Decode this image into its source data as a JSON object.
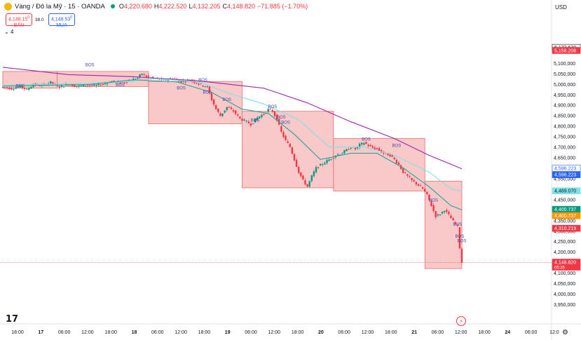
{
  "header": {
    "symbol": "Vàng / Đô la Mỹ · 15 · OANDA",
    "o_label": "O",
    "o": "4,220.680",
    "h_label": "H",
    "h": "4,222.520",
    "l_label": "L",
    "l": "4,132.205",
    "c_label": "C",
    "c": "4,148.820",
    "change": "−71.885 (−1.70%)"
  },
  "trade": {
    "sell_price": "4,148.15",
    "sell_sup": "0",
    "sell_label": "BÁN",
    "spread": "38.0",
    "buy_price": "4,148.53",
    "buy_sup": "0",
    "buy_label": "MUA"
  },
  "indicator_row": {
    "chevron": "⌄",
    "count": "4"
  },
  "currency": "USD",
  "colors": {
    "up": "#089981",
    "down": "#f23645",
    "box": "#f7b6b6",
    "box_border": "#e07070",
    "ema_teal": "#26a69a",
    "ema_cyan": "#7fe3e8",
    "ema_purple": "#9c27b0",
    "bos": "#3949ab"
  },
  "chart_data": {
    "type": "candlestick",
    "ylim": [
      3950,
      5220
    ],
    "y_ticks": [
      "5,100,000",
      "5,050,000",
      "5,000,000",
      "4,950,000",
      "4,900,000",
      "4,850,000",
      "4,800,000",
      "4,750,000",
      "4,700,000",
      "4,650,000",
      "4,600,000",
      "4,550,000",
      "4,500,000",
      "4,450,000",
      "4,400,000",
      "4,350,000",
      "4,300,000",
      "4,250,000",
      "4,200,000",
      "4,150,000",
      "4,100,000",
      "4,050,000",
      "4,000,000",
      "3,950,000"
    ],
    "x_ticks": [
      "18:00",
      "17",
      "06:00",
      "12:00",
      "18:00",
      "18",
      "06:00",
      "12:00",
      "18:00",
      "19",
      "06:00",
      "12:00",
      "18:00",
      "20",
      "06:00",
      "12:00",
      "18:00",
      "21",
      "06:00",
      "12:00",
      "18:00",
      "24",
      "06:00",
      "12:0"
    ],
    "price_path": [
      [
        0,
        4985
      ],
      [
        4,
        4978
      ],
      [
        8,
        4990
      ],
      [
        11,
        4972
      ],
      [
        14,
        4998
      ],
      [
        18,
        4992
      ],
      [
        22,
        5008
      ],
      [
        26,
        4985
      ],
      [
        30,
        5000
      ],
      [
        34,
        4988
      ],
      [
        38,
        4995
      ],
      [
        42,
        4992
      ],
      [
        46,
        5000
      ],
      [
        50,
        5012
      ],
      [
        54,
        5005
      ],
      [
        58,
        5015
      ],
      [
        62,
        5030
      ],
      [
        64,
        5050
      ],
      [
        66,
        5035
      ],
      [
        70,
        5025
      ],
      [
        74,
        5018
      ],
      [
        78,
        5028
      ],
      [
        82,
        5012
      ],
      [
        86,
        5020
      ],
      [
        90,
        5000
      ],
      [
        94,
        4985
      ],
      [
        96,
        4925
      ],
      [
        98,
        4880
      ],
      [
        100,
        4848
      ],
      [
        103,
        4890
      ],
      [
        106,
        4870
      ],
      [
        109,
        4835
      ],
      [
        112,
        4820
      ],
      [
        114,
        4808
      ],
      [
        117,
        4840
      ],
      [
        120,
        4858
      ],
      [
        122,
        4878
      ],
      [
        124,
        4870
      ],
      [
        126,
        4830
      ],
      [
        128,
        4770
      ],
      [
        130,
        4730
      ],
      [
        132,
        4700
      ],
      [
        134,
        4640
      ],
      [
        136,
        4580
      ],
      [
        138,
        4540
      ],
      [
        140,
        4510
      ],
      [
        142,
        4560
      ],
      [
        144,
        4600
      ],
      [
        147,
        4620
      ],
      [
        150,
        4640
      ],
      [
        153,
        4660
      ],
      [
        156,
        4672
      ],
      [
        158,
        4685
      ],
      [
        160,
        4700
      ],
      [
        162,
        4690
      ],
      [
        164,
        4710
      ],
      [
        166,
        4720
      ],
      [
        169,
        4700
      ],
      [
        172,
        4690
      ],
      [
        175,
        4670
      ],
      [
        178,
        4660
      ],
      [
        180,
        4640
      ],
      [
        182,
        4615
      ],
      [
        184,
        4580
      ],
      [
        186,
        4560
      ],
      [
        188,
        4540
      ],
      [
        190,
        4525
      ],
      [
        193,
        4500
      ],
      [
        195,
        4470
      ],
      [
        197,
        4420
      ],
      [
        199,
        4370
      ],
      [
        201,
        4380
      ],
      [
        203,
        4400
      ],
      [
        205,
        4375
      ],
      [
        207,
        4345
      ],
      [
        209,
        4320
      ],
      [
        210,
        4220
      ],
      [
        211,
        4150
      ]
    ],
    "ema_teal": [
      [
        0,
        4990
      ],
      [
        40,
        4998
      ],
      [
        60,
        5020
      ],
      [
        80,
        5010
      ],
      [
        96,
        4960
      ],
      [
        110,
        4880
      ],
      [
        122,
        4860
      ],
      [
        134,
        4760
      ],
      [
        146,
        4640
      ],
      [
        160,
        4670
      ],
      [
        172,
        4670
      ],
      [
        184,
        4600
      ],
      [
        196,
        4510
      ],
      [
        206,
        4420
      ],
      [
        211,
        4400
      ]
    ],
    "ema_cyan": [
      [
        0,
        4995
      ],
      [
        50,
        5005
      ],
      [
        70,
        5025
      ],
      [
        90,
        5010
      ],
      [
        104,
        4955
      ],
      [
        120,
        4905
      ],
      [
        136,
        4830
      ],
      [
        150,
        4700
      ],
      [
        166,
        4700
      ],
      [
        180,
        4660
      ],
      [
        196,
        4580
      ],
      [
        206,
        4500
      ],
      [
        211,
        4489
      ]
    ],
    "ema_purple": [
      [
        0,
        5080
      ],
      [
        30,
        5045
      ],
      [
        60,
        5035
      ],
      [
        90,
        5015
      ],
      [
        120,
        4980
      ],
      [
        140,
        4910
      ],
      [
        160,
        4820
      ],
      [
        180,
        4740
      ],
      [
        196,
        4660
      ],
      [
        211,
        4596
      ]
    ],
    "boxes": [
      {
        "i0": 0,
        "i1": 25,
        "top": 5060,
        "bottom": 4980
      },
      {
        "i0": 25,
        "i1": 67,
        "top": 5060,
        "bottom": 4988
      },
      {
        "i0": 67,
        "i1": 110,
        "top": 5012,
        "bottom": 4810
      },
      {
        "i0": 110,
        "i1": 152,
        "top": 4870,
        "bottom": 4505
      },
      {
        "i0": 152,
        "i1": 194,
        "top": 4740,
        "bottom": 4490
      },
      {
        "i0": 194,
        "i1": 211,
        "top": 4537,
        "bottom": 4120
      }
    ],
    "bos_labels": [
      {
        "i": 8,
        "v": 4985,
        "text": "BOS"
      },
      {
        "i": 40,
        "v": 5085,
        "text": "BOS"
      },
      {
        "i": 54,
        "v": 4990,
        "text": "BOS"
      },
      {
        "i": 82,
        "v": 4975,
        "text": "BOS"
      },
      {
        "i": 92,
        "v": 5012,
        "text": "BOS"
      },
      {
        "i": 94,
        "v": 4955,
        "text": "BOS"
      },
      {
        "i": 103,
        "v": 4920,
        "text": "BOS"
      },
      {
        "i": 116,
        "v": 4820,
        "text": "BOS"
      },
      {
        "i": 124,
        "v": 4885,
        "text": "BOS"
      },
      {
        "i": 128,
        "v": 4836,
        "text": "BOS"
      },
      {
        "i": 130,
        "v": 4810,
        "text": "BOS"
      },
      {
        "i": 167,
        "v": 4730,
        "text": "BOS"
      },
      {
        "i": 181,
        "v": 4700,
        "text": "BOS"
      },
      {
        "i": 198,
        "v": 4440,
        "text": "BOS"
      },
      {
        "i": 209,
        "v": 4325,
        "text": "BOS"
      },
      {
        "i": 210,
        "v": 4268,
        "text": "BOS"
      },
      {
        "i": 211,
        "v": 4245,
        "text": "BOS"
      }
    ],
    "price_labels": [
      {
        "v": 5172.63,
        "text": "5,172.630",
        "bg": "#ffffff",
        "fg": "#131722",
        "border": "#131722"
      },
      {
        "v": 5158.208,
        "text": "5,158.208",
        "bg": "#f23645",
        "fg": "#ffffff"
      },
      {
        "v": 4596.223,
        "text": "4,596.223",
        "bg": "#ffffff",
        "fg": "#2962ff",
        "border": "#2962ff"
      },
      {
        "v": 4596.223,
        "text": "4,596.223",
        "bg": "#2962ff",
        "fg": "#ffffff",
        "offset": 1
      },
      {
        "v": 4489.07,
        "text": "4,489.070",
        "bg": "#7fe3e8",
        "fg": "#131722"
      },
      {
        "v": 4400.737,
        "text": "4,400.737",
        "bg": "#089981",
        "fg": "#ffffff"
      },
      {
        "v": 4400.737,
        "text": "4,400.737",
        "bg": "#ff9800",
        "fg": "#ffffff",
        "offset": 1
      },
      {
        "v": 4310.219,
        "text": "4,310.219",
        "bg": "#f23645",
        "fg": "#ffffff"
      },
      {
        "v": 4148.82,
        "text": "4,148.820",
        "bg": "#f23645",
        "fg": "#ffffff",
        "sub": "05:35"
      }
    ]
  }
}
